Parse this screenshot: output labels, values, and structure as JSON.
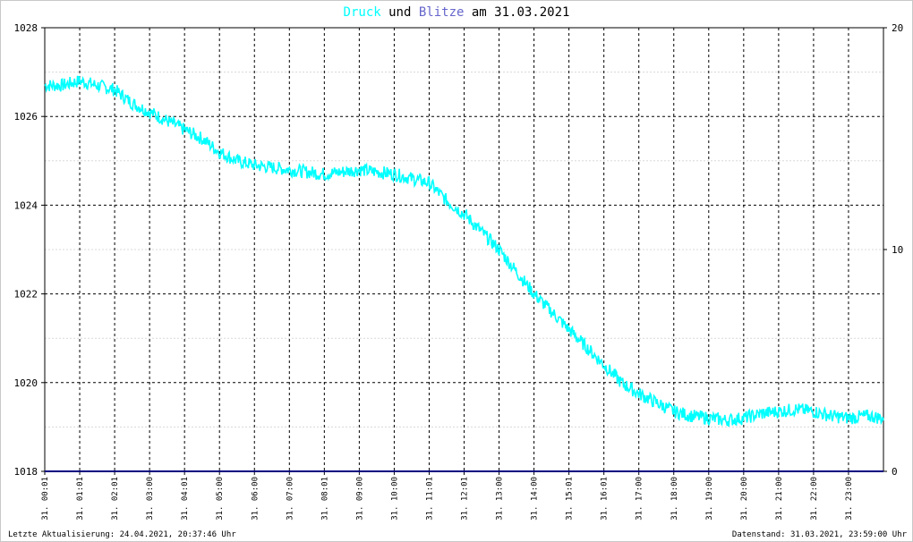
{
  "title": {
    "series1": "Druck",
    "mid": "und",
    "series2": "Blitze",
    "rest": "am 31.03.2021"
  },
  "colors": {
    "druck": "#00ffff",
    "blitze": "#6666cc",
    "baseline": "#000080",
    "text": "#000000"
  },
  "footer": {
    "left": "Letzte Aktualisierung: 24.04.2021, 20:37:46 Uhr",
    "right": "Datenstand: 31.03.2021, 23:59:00 Uhr"
  },
  "chart_data": {
    "type": "line",
    "title": "Druck und Blitze am 31.03.2021",
    "grid": true,
    "x_ticks": [
      "31. 00:01",
      "31. 01:01",
      "31. 02:01",
      "31. 03:00",
      "31. 04:01",
      "31. 05:00",
      "31. 06:00",
      "31. 07:00",
      "31. 08:01",
      "31. 09:00",
      "31. 10:00",
      "31. 11:01",
      "31. 12:01",
      "31. 13:00",
      "31. 14:00",
      "31. 15:01",
      "31. 16:01",
      "31. 17:00",
      "31. 18:00",
      "31. 19:00",
      "31. 20:00",
      "31. 21:00",
      "31. 22:00",
      "31. 23:00"
    ],
    "y_left": {
      "ticks": [
        "1018",
        "1020",
        "1022",
        "1024",
        "1026",
        "1028"
      ],
      "range": [
        1018,
        1028
      ]
    },
    "y_right": {
      "ticks": [
        "0",
        "10",
        "20"
      ],
      "range": [
        0,
        20
      ]
    },
    "series": [
      {
        "name": "Druck",
        "axis": "left",
        "x": [
          0.0,
          0.5,
          1.0,
          1.5,
          2.0,
          2.5,
          3.0,
          3.5,
          4.0,
          4.5,
          5.0,
          5.5,
          6.0,
          6.5,
          7.0,
          7.5,
          8.0,
          8.5,
          9.0,
          9.5,
          10.0,
          10.5,
          11.0,
          11.5,
          12.0,
          12.5,
          13.0,
          13.5,
          14.0,
          14.5,
          15.0,
          15.5,
          16.0,
          16.5,
          17.0,
          17.5,
          18.0,
          18.5,
          19.0,
          19.5,
          20.0,
          20.5,
          21.0,
          21.5,
          22.0,
          22.5,
          23.0,
          23.5,
          24.0
        ],
        "y": [
          1026.7,
          1026.7,
          1026.8,
          1026.7,
          1026.6,
          1026.3,
          1026.1,
          1025.9,
          1025.7,
          1025.5,
          1025.2,
          1025.0,
          1024.9,
          1024.85,
          1024.8,
          1024.75,
          1024.7,
          1024.75,
          1024.8,
          1024.75,
          1024.7,
          1024.6,
          1024.5,
          1024.1,
          1023.8,
          1023.4,
          1023.0,
          1022.5,
          1022.0,
          1021.6,
          1021.2,
          1020.8,
          1020.4,
          1020.0,
          1019.75,
          1019.55,
          1019.35,
          1019.25,
          1019.2,
          1019.15,
          1019.2,
          1019.3,
          1019.35,
          1019.4,
          1019.35,
          1019.25,
          1019.2,
          1019.25,
          1019.2
        ]
      },
      {
        "name": "Blitze",
        "axis": "right",
        "x": [
          0,
          24
        ],
        "y": [
          0,
          0
        ]
      }
    ]
  }
}
